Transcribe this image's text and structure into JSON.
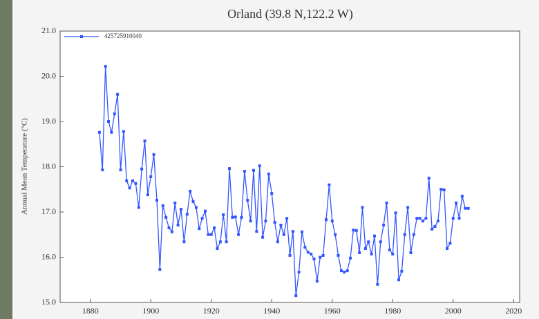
{
  "chart_data": {
    "type": "line",
    "title": "Orland (39.8 N,122.2 W)",
    "y_label": "Annual Mean Temperature (°C)",
    "x": [
      1883,
      1884,
      1885,
      1886,
      1887,
      1888,
      1889,
      1890,
      1891,
      1892,
      1893,
      1894,
      1895,
      1896,
      1897,
      1898,
      1899,
      1900,
      1901,
      1902,
      1903,
      1904,
      1905,
      1906,
      1907,
      1908,
      1909,
      1910,
      1911,
      1912,
      1913,
      1914,
      1915,
      1916,
      1917,
      1918,
      1919,
      1920,
      1921,
      1922,
      1923,
      1924,
      1925,
      1926,
      1927,
      1928,
      1929,
      1930,
      1931,
      1932,
      1933,
      1934,
      1935,
      1936,
      1937,
      1938,
      1939,
      1940,
      1941,
      1942,
      1943,
      1944,
      1945,
      1946,
      1947,
      1948,
      1949,
      1950,
      1951,
      1952,
      1953,
      1954,
      1955,
      1956,
      1957,
      1958,
      1959,
      1960,
      1961,
      1962,
      1963,
      1964,
      1965,
      1966,
      1967,
      1968,
      1969,
      1970,
      1971,
      1972,
      1973,
      1974,
      1975,
      1976,
      1977,
      1978,
      1979,
      1980,
      1981,
      1982,
      1983,
      1984,
      1985,
      1986,
      1987,
      1988,
      1989,
      1990,
      1991,
      1992,
      1993,
      1994,
      1995,
      1996,
      1997,
      1998,
      1999,
      2000,
      2001,
      2002,
      2003,
      2004,
      2005
    ],
    "series": [
      {
        "name": "425725910040",
        "color": "#3355ff",
        "values": [
          18.76,
          17.93,
          20.22,
          19.0,
          18.76,
          19.17,
          19.6,
          17.93,
          18.78,
          17.69,
          17.53,
          17.69,
          17.63,
          17.1,
          17.95,
          18.57,
          17.38,
          17.78,
          18.27,
          17.26,
          15.73,
          17.14,
          16.88,
          16.65,
          16.56,
          17.2,
          16.71,
          17.06,
          16.34,
          16.95,
          17.46,
          17.23,
          17.1,
          16.63,
          16.86,
          17.02,
          16.5,
          16.5,
          16.65,
          16.19,
          16.34,
          16.94,
          16.34,
          17.96,
          16.88,
          16.89,
          16.5,
          16.88,
          17.9,
          17.26,
          16.8,
          17.92,
          16.57,
          18.02,
          16.44,
          16.8,
          17.84,
          17.41,
          16.77,
          16.34,
          16.71,
          16.5,
          16.86,
          16.04,
          16.57,
          15.15,
          15.67,
          16.56,
          16.22,
          16.11,
          16.07,
          15.96,
          15.47,
          16.0,
          16.04,
          16.83,
          17.6,
          16.8,
          16.5,
          16.04,
          15.7,
          15.67,
          15.7,
          15.98,
          16.6,
          16.59,
          16.1,
          17.1,
          16.19,
          16.34,
          16.07,
          16.47,
          15.4,
          16.34,
          16.71,
          17.2,
          16.16,
          16.07,
          16.98,
          15.5,
          15.69,
          16.5,
          17.1,
          16.1,
          16.5,
          16.86,
          16.86,
          16.8,
          16.86,
          17.75,
          16.62,
          16.68,
          16.8,
          17.5,
          17.49,
          16.19,
          16.31,
          16.86,
          17.2,
          16.86,
          17.35,
          17.08,
          17.08
        ]
      }
    ],
    "xlim": [
      1870,
      2022
    ],
    "xticks": [
      1880,
      1900,
      1920,
      1940,
      1960,
      1980,
      2000,
      2020
    ],
    "ylim": [
      15,
      21
    ],
    "yticks": [
      {
        "value": 15,
        "label": "15.0"
      },
      {
        "value": 16,
        "label": "16.0"
      },
      {
        "value": 17,
        "label": "17.0"
      },
      {
        "value": 18,
        "label": "18.0"
      },
      {
        "value": 19,
        "label": "19.0"
      },
      {
        "value": 20,
        "label": "20.0"
      },
      {
        "value": 21,
        "label": "21.0"
      }
    ],
    "legend": "upper left"
  }
}
